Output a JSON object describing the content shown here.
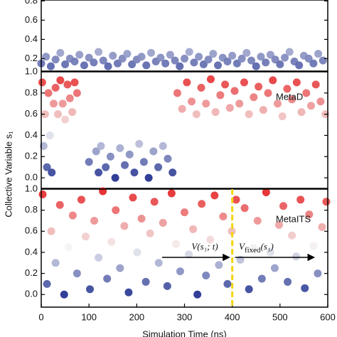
{
  "chart_data": [
    {
      "type": "scatter",
      "x": [
        0,
        10,
        20,
        30,
        40,
        50,
        60,
        70,
        80,
        90,
        100,
        110,
        120,
        130,
        140,
        150,
        160,
        170,
        180,
        190,
        200,
        210,
        220,
        230,
        240,
        250,
        260,
        270,
        280,
        290,
        300,
        310,
        320,
        330,
        340,
        350,
        360,
        370,
        380,
        390,
        400,
        410,
        420,
        430,
        440,
        450,
        460,
        470,
        480,
        490,
        500,
        510,
        520,
        530,
        540,
        550,
        560,
        570,
        580,
        590
      ],
      "values": [
        0.15,
        0.22,
        0.12,
        0.19,
        0.26,
        0.14,
        0.2,
        0.17,
        0.24,
        0.13,
        0.21,
        0.16,
        0.27,
        0.18,
        0.12,
        0.23,
        0.15,
        0.2,
        0.25,
        0.14,
        0.19,
        0.22,
        0.13,
        0.26,
        0.17,
        0.21,
        0.15,
        0.24,
        0.18,
        0.12,
        0.2,
        0.27,
        0.16,
        0.22,
        0.14,
        0.19,
        0.25,
        0.13,
        0.21,
        0.17,
        0.23,
        0.15,
        0.2,
        0.26,
        0.18,
        0.12,
        0.22,
        0.16,
        0.24,
        0.19,
        0.14,
        0.21,
        0.27,
        0.17,
        0.13,
        0.23,
        0.2,
        0.15,
        0.25,
        0.18
      ],
      "xlim": [
        0,
        600
      ],
      "ylim": [
        0.07,
        0.81
      ],
      "yticks": [
        0.2,
        0.4,
        0.6,
        0.8
      ],
      "colormap": [
        "#1f2f8f",
        "#f4f4f4",
        "#e41a1c"
      ],
      "color_range": [
        0,
        1
      ]
    },
    {
      "type": "scatter",
      "label": "MetaD",
      "ylabel": "Collective Variable s₁",
      "x": [
        2,
        5,
        8,
        12,
        15,
        18,
        22,
        26,
        30,
        35,
        40,
        45,
        50,
        55,
        60,
        65,
        70,
        75,
        100,
        115,
        120,
        125,
        135,
        145,
        155,
        165,
        175,
        185,
        195,
        205,
        215,
        225,
        235,
        245,
        255,
        265,
        275,
        285,
        295,
        305,
        315,
        325,
        335,
        345,
        355,
        365,
        375,
        385,
        395,
        405,
        415,
        425,
        435,
        445,
        455,
        465,
        475,
        485,
        495,
        505,
        515,
        525,
        535,
        545,
        555,
        565,
        575,
        585,
        595
      ],
      "values": [
        0.9,
        0.3,
        0.6,
        0.1,
        0.8,
        0.4,
        0.05,
        0.7,
        0.85,
        0.6,
        0.92,
        0.7,
        0.55,
        0.88,
        0.75,
        0.62,
        0.9,
        0.8,
        0.15,
        0.25,
        0.05,
        0.3,
        0.1,
        0.2,
        0.0,
        0.28,
        0.12,
        0.22,
        0.05,
        0.32,
        0.15,
        0.0,
        0.25,
        0.1,
        0.3,
        0.18,
        0.05,
        0.8,
        0.65,
        0.9,
        0.72,
        0.6,
        0.85,
        0.7,
        0.93,
        0.62,
        0.78,
        0.88,
        0.66,
        0.82,
        0.7,
        0.9,
        0.6,
        0.76,
        0.86,
        0.64,
        0.8,
        0.92,
        0.7,
        0.58,
        0.84,
        0.74,
        0.9,
        0.62,
        0.8,
        0.68,
        0.88,
        0.72,
        0.6
      ],
      "xlim": [
        0,
        600
      ],
      "ylim": [
        -0.1,
        1.0
      ],
      "yticks": [
        {
          "value": 0,
          "label": "0.0"
        },
        0.2,
        0.4,
        0.6,
        0.8,
        {
          "value": 1,
          "label": "1.0"
        }
      ],
      "colormap": [
        "#1f2f8f",
        "#f4f4f4",
        "#e41a1c"
      ],
      "color_range": [
        0,
        1
      ]
    },
    {
      "type": "scatter",
      "label": "MetaITS",
      "xlabel": "Simulation Time (ns)",
      "x": [
        3,
        12,
        21,
        30,
        39,
        48,
        57,
        66,
        75,
        84,
        93,
        102,
        111,
        120,
        129,
        138,
        147,
        156,
        165,
        174,
        183,
        192,
        201,
        210,
        219,
        228,
        237,
        246,
        255,
        264,
        273,
        282,
        291,
        300,
        309,
        318,
        327,
        336,
        345,
        354,
        363,
        372,
        381,
        390,
        399,
        408,
        417,
        426,
        435,
        444,
        453,
        462,
        471,
        480,
        489,
        498,
        507,
        516,
        525,
        534,
        543,
        552,
        561,
        570,
        579,
        588,
        597
      ],
      "values": [
        0.95,
        0.1,
        0.6,
        0.3,
        0.85,
        0.0,
        0.45,
        0.75,
        0.2,
        0.9,
        0.55,
        0.05,
        0.7,
        0.35,
        0.98,
        0.15,
        0.5,
        0.8,
        0.25,
        0.65,
        0.02,
        0.92,
        0.4,
        0.72,
        0.12,
        0.58,
        0.88,
        0.3,
        0.68,
        0.08,
        0.96,
        0.48,
        0.22,
        0.78,
        0.38,
        0.62,
        0.0,
        0.86,
        0.18,
        0.52,
        0.94,
        0.28,
        0.74,
        0.1,
        0.6,
        0.9,
        0.33,
        0.82,
        0.05,
        0.44,
        0.7,
        0.15,
        0.97,
        0.4,
        0.25,
        0.66,
        0.84,
        0.12,
        0.56,
        0.36,
        0.9,
        0.06,
        0.76,
        0.46,
        0.2,
        0.64,
        0.88
      ],
      "xlim": [
        0,
        600
      ],
      "ylim": [
        -0.12,
        1.0
      ],
      "xticks": [
        0,
        100,
        200,
        300,
        400,
        500,
        600
      ],
      "yticks": [
        {
          "value": 0,
          "label": "0.0"
        },
        0.2,
        0.4,
        0.6,
        0.8,
        {
          "value": 1,
          "label": "1.0"
        }
      ],
      "vline": 400,
      "annotations": [
        {
          "text": "V(s₁; t)"
        },
        {
          "text": "V",
          "sub": "fixed",
          "rest": "(s₁)"
        }
      ],
      "colormap": [
        "#1f2f8f",
        "#f4f4f4",
        "#e41a1c"
      ],
      "color_range": [
        0,
        1
      ]
    }
  ]
}
